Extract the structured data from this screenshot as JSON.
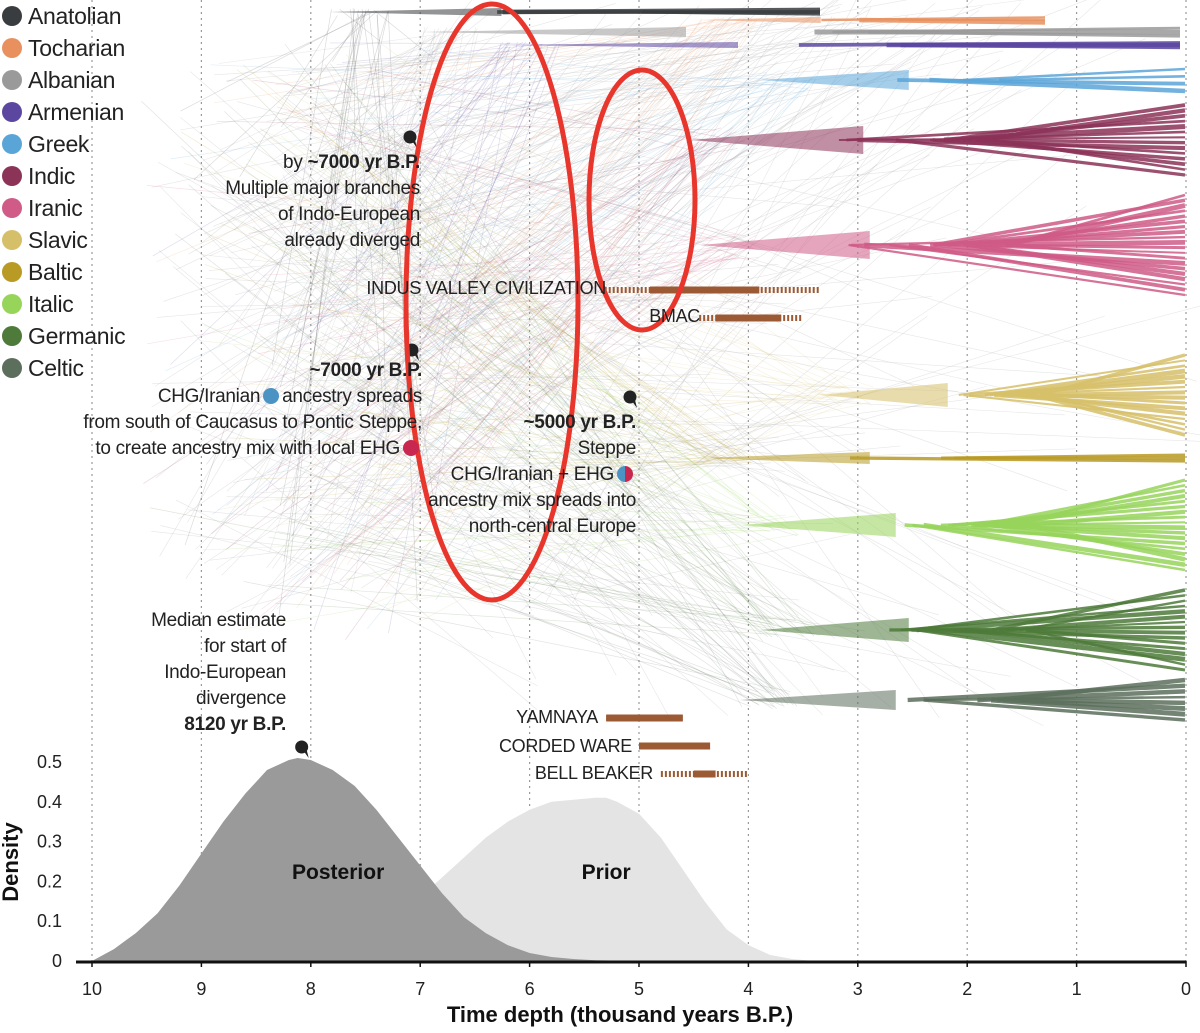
{
  "legend": [
    {
      "label": "Anatolian",
      "color": "#3a3d3f"
    },
    {
      "label": "Tocharian",
      "color": "#e8915f"
    },
    {
      "label": "Albanian",
      "color": "#9a9a9a"
    },
    {
      "label": "Armenian",
      "color": "#5b46a0"
    },
    {
      "label": "Greek",
      "color": "#5aa5d8"
    },
    {
      "label": "Indic",
      "color": "#8c3358"
    },
    {
      "label": "Iranic",
      "color": "#cf5b86"
    },
    {
      "label": "Slavic",
      "color": "#d6bf69"
    },
    {
      "label": "Baltic",
      "color": "#b89a25"
    },
    {
      "label": "Italic",
      "color": "#97d45a"
    },
    {
      "label": "Germanic",
      "color": "#4e7a3a"
    },
    {
      "label": "Celtic",
      "color": "#5c6e5c"
    }
  ],
  "annotations": {
    "a7000_prefix": "by ",
    "a7000_bold": "~7000 yr B.P.",
    "a7000_line2": "Multiple major branches",
    "a7000_line3": "of Indo-European",
    "a7000_line4": "already diverged",
    "chg_bold": "~7000 yr B.P.",
    "chg_line2a": "CHG/Iranian",
    "chg_line2b": "ancestry spreads",
    "chg_line3": "from south of Caucasus to Pontic Steppe,",
    "chg_line4": "to create ancestry mix with local EHG",
    "steppe_bold": "~5000 yr B.P.",
    "steppe_line2": "Steppe",
    "steppe_line3a": "CHG/Iranian + EHG",
    "steppe_line4": "ancestry mix spreads into",
    "steppe_line5": "north-central Europe",
    "median_line1": "Median estimate",
    "median_line2": "for start of",
    "median_line3": "Indo-European",
    "median_line4": "divergence",
    "median_bold": "8120 yr B.P."
  },
  "cultures": [
    {
      "label": "INDUS VALLEY CIVILIZATION",
      "solid": [
        4.9,
        3.9
      ],
      "dashed": [
        5.35,
        3.35
      ]
    },
    {
      "label": "BMAC",
      "solid": [
        4.3,
        3.7
      ],
      "dashed": [
        4.45,
        3.5
      ]
    },
    {
      "label": "YAMNAYA",
      "solid": [
        5.3,
        4.6
      ],
      "dashed": [
        5.3,
        4.6
      ]
    },
    {
      "label": "CORDED WARE",
      "solid": [
        5.0,
        4.35
      ],
      "dashed": [
        5.0,
        4.35
      ]
    },
    {
      "label": "BELL BEAKER",
      "solid": [
        4.5,
        4.3
      ],
      "dashed": [
        4.8,
        4.0
      ]
    }
  ],
  "chart_data": {
    "type": "area",
    "title": "",
    "xlabel": "Time depth (thousand years B.P.)",
    "ylabel": "Density",
    "xlim": [
      10,
      0
    ],
    "ylim": [
      0,
      0.5
    ],
    "x_ticks": [
      "10",
      "9",
      "8",
      "7",
      "6",
      "5",
      "4",
      "3",
      "2",
      "1",
      "0"
    ],
    "y_ticks": [
      "0",
      "0.1",
      "0.2",
      "0.3",
      "0.4",
      "0.5"
    ],
    "series": [
      {
        "name": "Posterior",
        "color": "#9a9a9a",
        "x": [
          10.0,
          9.8,
          9.6,
          9.4,
          9.2,
          9.0,
          8.8,
          8.6,
          8.4,
          8.2,
          8.12,
          8.0,
          7.8,
          7.6,
          7.4,
          7.2,
          7.0,
          6.8,
          6.6,
          6.4,
          6.2,
          6.0,
          5.8,
          5.6,
          5.4,
          5.2,
          5.0
        ],
        "y": [
          0.0,
          0.03,
          0.07,
          0.12,
          0.19,
          0.27,
          0.35,
          0.42,
          0.48,
          0.505,
          0.51,
          0.505,
          0.48,
          0.44,
          0.38,
          0.31,
          0.24,
          0.17,
          0.11,
          0.07,
          0.04,
          0.02,
          0.01,
          0.005,
          0.002,
          0.001,
          0.0
        ]
      },
      {
        "name": "Prior",
        "color": "#e4e4e4",
        "x": [
          7.8,
          7.6,
          7.4,
          7.2,
          7.0,
          6.8,
          6.6,
          6.4,
          6.2,
          6.0,
          5.8,
          5.6,
          5.4,
          5.3,
          5.2,
          5.0,
          4.8,
          4.6,
          4.4,
          4.2,
          4.0,
          3.8,
          3.6,
          3.4
        ],
        "y": [
          0.0,
          0.02,
          0.05,
          0.1,
          0.16,
          0.21,
          0.26,
          0.31,
          0.35,
          0.38,
          0.4,
          0.405,
          0.41,
          0.41,
          0.4,
          0.37,
          0.31,
          0.23,
          0.15,
          0.08,
          0.04,
          0.015,
          0.005,
          0.0
        ]
      }
    ],
    "area_labels": {
      "posterior": "Posterior",
      "prior": "Prior"
    },
    "median_marker_x": 8.12
  }
}
